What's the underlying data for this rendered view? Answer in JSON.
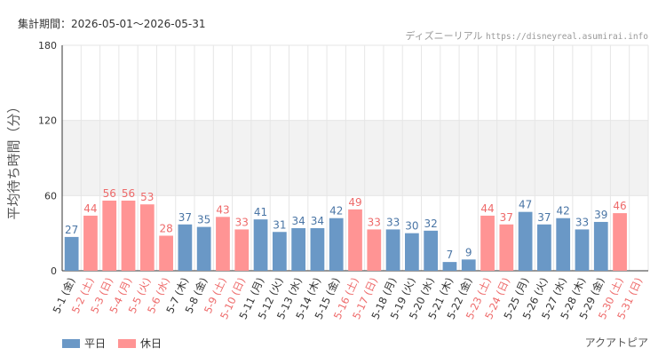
{
  "header": {
    "period_label": "集計期間：2026-05-01～2026-05-31",
    "credit_name": "ディズニーリアル",
    "credit_url": "https://disneyreal.asumirai.info"
  },
  "footer": {
    "attraction": "アクアトピア"
  },
  "legend": [
    {
      "name": "平日",
      "color": "#6a98c6"
    },
    {
      "name": "休日",
      "color": "#ff9494"
    }
  ],
  "colors": {
    "weekday_label": "#4a75a5",
    "holiday_label": "#ee6a6a",
    "band": "#f2f2f2",
    "grid": "#e6e6e6"
  },
  "chart_data": {
    "type": "bar",
    "ylabel": "平均待ち時間（分）",
    "ylim": [
      0,
      180
    ],
    "yticks": [
      0,
      60,
      120,
      180
    ],
    "grid": true,
    "legend_position": "bottom-left",
    "categories": [
      "5-1 (金)",
      "5-2 (土)",
      "5-3 (日)",
      "5-4 (月)",
      "5-5 (火)",
      "5-6 (水)",
      "5-7 (木)",
      "5-8 (金)",
      "5-9 (土)",
      "5-10 (日)",
      "5-11 (月)",
      "5-12 (火)",
      "5-13 (水)",
      "5-14 (木)",
      "5-15 (金)",
      "5-16 (土)",
      "5-17 (日)",
      "5-18 (月)",
      "5-19 (火)",
      "5-20 (水)",
      "5-21 (木)",
      "5-22 (金)",
      "5-23 (土)",
      "5-24 (日)",
      "5-25 (月)",
      "5-26 (火)",
      "5-27 (水)",
      "5-28 (木)",
      "5-29 (金)",
      "5-30 (土)",
      "5-31 (日)"
    ],
    "values": [
      27,
      44,
      56,
      56,
      53,
      28,
      37,
      35,
      43,
      33,
      41,
      31,
      34,
      34,
      42,
      49,
      33,
      33,
      30,
      32,
      7,
      9,
      44,
      37,
      47,
      37,
      42,
      33,
      39,
      46,
      null
    ],
    "day_type": [
      "平日",
      "休日",
      "休日",
      "休日",
      "休日",
      "休日",
      "平日",
      "平日",
      "休日",
      "休日",
      "平日",
      "平日",
      "平日",
      "平日",
      "平日",
      "休日",
      "休日",
      "平日",
      "平日",
      "平日",
      "平日",
      "平日",
      "休日",
      "休日",
      "平日",
      "平日",
      "平日",
      "平日",
      "平日",
      "休日",
      "休日"
    ]
  }
}
